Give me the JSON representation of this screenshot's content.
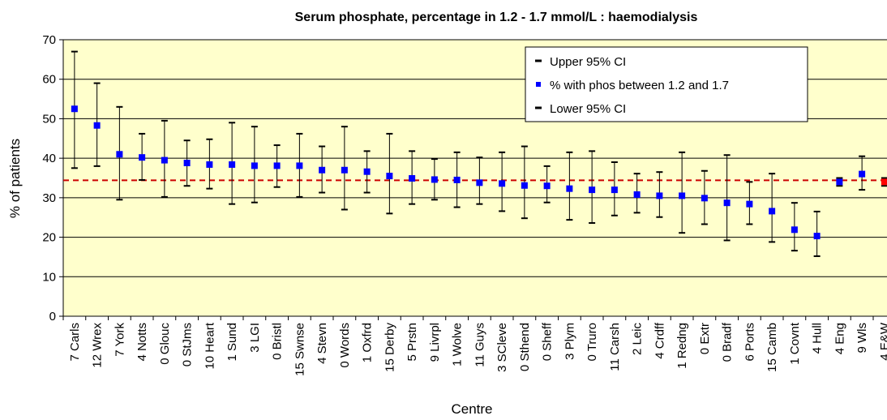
{
  "chart_data": {
    "type": "errorbar",
    "title": "Serum phosphate, percentage in 1.2 - 1.7 mmol/L : haemodialysis",
    "x_label": "Centre",
    "y_label": "% of patients",
    "categories": [
      "7 Carls",
      "12 Wrex",
      "7 York",
      "4 Notts",
      "0 Glouc",
      "0 StJms",
      "10 Heart",
      "1 Sund",
      "3 LGI",
      "0 Bristl",
      "15 Swnse",
      "4 Stevn",
      "0 Words",
      "1 Oxfrd",
      "15 Derby",
      "5 Prstn",
      "9 Livrpl",
      "1 Wolve",
      "11 Guys",
      "3 SCleve",
      "0 Sthend",
      "0 Sheff",
      "3 Plym",
      "0 Truro",
      "11 Carsh",
      "2 Leic",
      "4 Crdff",
      "1 Redng",
      "0 Extr",
      "0 Bradf",
      "6 Ports",
      "15 Camb",
      "1 Covnt",
      "4 Hull",
      "4 Eng",
      "9 Wls",
      "4 E&W"
    ],
    "series": [
      {
        "name": "Upper 95% CI",
        "color": "#000000",
        "values": [
          67,
          59,
          53,
          46.2,
          49.5,
          44.5,
          44.8,
          49,
          48,
          43.3,
          46.2,
          43,
          48,
          41.8,
          46.2,
          41.8,
          39.8,
          41.5,
          40.2,
          41.5,
          43,
          38,
          41.5,
          41.8,
          39,
          36.1,
          36.5,
          41.5,
          36.8,
          40.8,
          34,
          36.1,
          28.7,
          26.5,
          35,
          40.5,
          35
        ]
      },
      {
        "name": "% with phos between 1.2 and 1.7",
        "color": "#0000ff",
        "values": [
          52.5,
          48.3,
          41,
          40.2,
          39.5,
          38.8,
          38.4,
          38.4,
          38.1,
          38.1,
          38.1,
          37,
          37,
          36.6,
          35.5,
          34.9,
          34.6,
          34.5,
          33.8,
          33.6,
          33.1,
          33,
          32.3,
          32,
          32,
          30.8,
          30.5,
          30.5,
          29.9,
          28.7,
          28.4,
          26.6,
          21.9,
          20.3,
          34,
          36,
          34
        ],
        "colors": [
          "#0000ff",
          "#0000ff",
          "#0000ff",
          "#0000ff",
          "#0000ff",
          "#0000ff",
          "#0000ff",
          "#0000ff",
          "#0000ff",
          "#0000ff",
          "#0000ff",
          "#0000ff",
          "#0000ff",
          "#0000ff",
          "#0000ff",
          "#0000ff",
          "#0000ff",
          "#0000ff",
          "#0000ff",
          "#0000ff",
          "#0000ff",
          "#0000ff",
          "#0000ff",
          "#0000ff",
          "#0000ff",
          "#0000ff",
          "#0000ff",
          "#0000ff",
          "#0000ff",
          "#0000ff",
          "#0000ff",
          "#0000ff",
          "#0000ff",
          "#0000ff",
          "#0000ff",
          "#0000ff",
          "#ff0000"
        ]
      },
      {
        "name": "Lower 95% CI",
        "color": "#000000",
        "values": [
          37.5,
          38,
          29.5,
          34.5,
          30.2,
          33,
          32.3,
          28.4,
          28.8,
          32.7,
          30.2,
          31.3,
          27,
          31.3,
          26,
          28.4,
          29.5,
          27.6,
          28.4,
          26.6,
          24.8,
          28.8,
          24.4,
          23.6,
          25.5,
          26.2,
          25.1,
          21.1,
          23.3,
          19.2,
          23.3,
          18.8,
          16.6,
          15.2,
          33,
          32,
          33
        ]
      }
    ],
    "reference_line": {
      "value": 34.4,
      "color": "#cc0000"
    },
    "ylim": [
      0,
      70
    ],
    "yticks": [
      0,
      10,
      20,
      30,
      40,
      50,
      60,
      70
    ],
    "grid": true,
    "plot_background": "#ffffcc",
    "legend": "upper right"
  }
}
